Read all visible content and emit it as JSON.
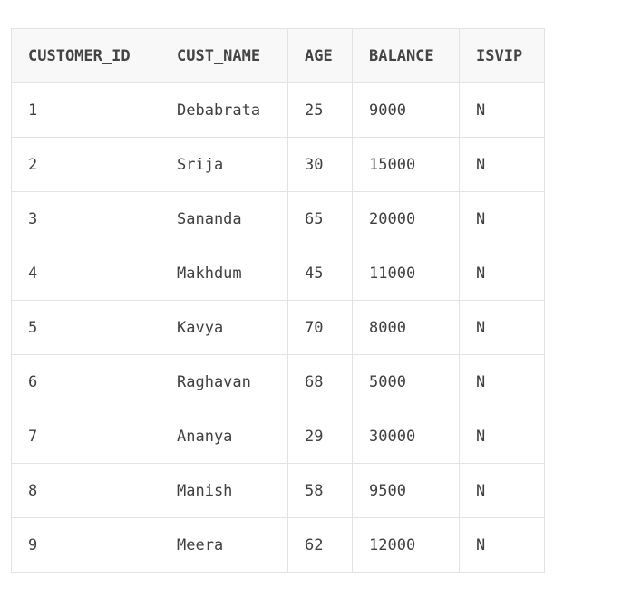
{
  "table": {
    "columns": [
      "CUSTOMER_ID",
      "CUST_NAME",
      "AGE",
      "BALANCE",
      "ISVIP"
    ],
    "rows": [
      [
        "1",
        "Debabrata",
        "25",
        "9000",
        "N"
      ],
      [
        "2",
        "Srija",
        "30",
        "15000",
        "N"
      ],
      [
        "3",
        "Sananda",
        "65",
        "20000",
        "N"
      ],
      [
        "4",
        "Makhdum",
        "45",
        "11000",
        "N"
      ],
      [
        "5",
        "Kavya",
        "70",
        "8000",
        "N"
      ],
      [
        "6",
        "Raghavan",
        "68",
        "5000",
        "N"
      ],
      [
        "7",
        "Ananya",
        "29",
        "30000",
        "N"
      ],
      [
        "8",
        "Manish",
        "58",
        "9500",
        "N"
      ],
      [
        "9",
        "Meera",
        "62",
        "12000",
        "N"
      ]
    ]
  }
}
